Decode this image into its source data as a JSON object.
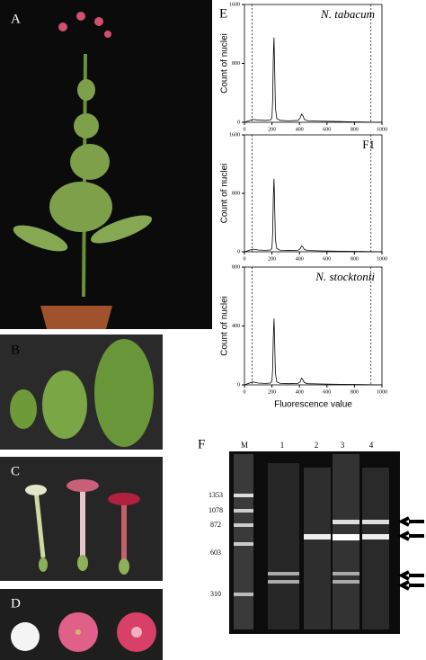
{
  "panels": {
    "a": "A",
    "b": "B",
    "c": "C",
    "d": "D",
    "e": "E",
    "f": "F"
  },
  "chart_data": [
    {
      "type": "line",
      "title": "N. tabacum",
      "ylabel": "Count of nuclei",
      "x": [
        0,
        60,
        100,
        150,
        190,
        200,
        205,
        210,
        215,
        220,
        225,
        235,
        260,
        320,
        390,
        405,
        415,
        425,
        435,
        460,
        550,
        700,
        850,
        1000
      ],
      "series": [
        {
          "name": "N. tabacum",
          "color": "#000000",
          "values": [
            0,
            40,
            30,
            25,
            30,
            60,
            300,
            900,
            1150,
            700,
            200,
            50,
            25,
            20,
            25,
            60,
            110,
            90,
            40,
            20,
            15,
            10,
            5,
            0
          ]
        }
      ],
      "xlim": [
        0,
        1000
      ],
      "ylim": [
        0,
        1600
      ],
      "xticks": [
        0,
        200,
        400,
        600,
        800,
        1000
      ],
      "yticks": [
        0,
        800,
        1600
      ],
      "gates": [
        55,
        920
      ]
    },
    {
      "type": "line",
      "title": "F1",
      "ylabel": "Count of nuclei",
      "x": [
        0,
        60,
        100,
        150,
        190,
        200,
        205,
        210,
        215,
        220,
        225,
        235,
        260,
        320,
        390,
        405,
        415,
        425,
        435,
        460,
        550,
        700,
        850,
        1000
      ],
      "series": [
        {
          "name": "F1",
          "color": "#000000",
          "values": [
            0,
            35,
            25,
            20,
            25,
            50,
            250,
            750,
            1000,
            600,
            170,
            45,
            20,
            18,
            22,
            40,
            80,
            65,
            30,
            18,
            12,
            8,
            4,
            0
          ]
        }
      ],
      "xlim": [
        0,
        1000
      ],
      "ylim": [
        0,
        1600
      ],
      "xticks": [
        0,
        200,
        400,
        600,
        800,
        1000
      ],
      "yticks": [
        0,
        800,
        1600
      ],
      "gates": [
        55,
        920
      ]
    },
    {
      "type": "line",
      "title": "N. stocktonii",
      "ylabel": "Count of nuclei",
      "xlabel": "Fluorescence value",
      "x": [
        0,
        60,
        100,
        150,
        190,
        200,
        205,
        210,
        215,
        220,
        225,
        235,
        260,
        320,
        390,
        405,
        415,
        425,
        435,
        460,
        550,
        700,
        850,
        1000
      ],
      "series": [
        {
          "name": "N. stocktonii",
          "color": "#000000",
          "values": [
            0,
            20,
            12,
            10,
            12,
            25,
            110,
            330,
            450,
            280,
            80,
            20,
            10,
            8,
            10,
            20,
            45,
            35,
            15,
            8,
            6,
            4,
            2,
            0
          ]
        }
      ],
      "xlim": [
        0,
        1000
      ],
      "ylim": [
        0,
        800
      ],
      "xticks": [
        0,
        200,
        400,
        600,
        800,
        1000
      ],
      "yticks": [
        0,
        400,
        800
      ],
      "gates": [
        55,
        920
      ]
    }
  ],
  "gel": {
    "lanes": [
      "M",
      "1",
      "2",
      "3",
      "4"
    ],
    "sizes": [
      1353,
      1078,
      872,
      603,
      310
    ]
  }
}
